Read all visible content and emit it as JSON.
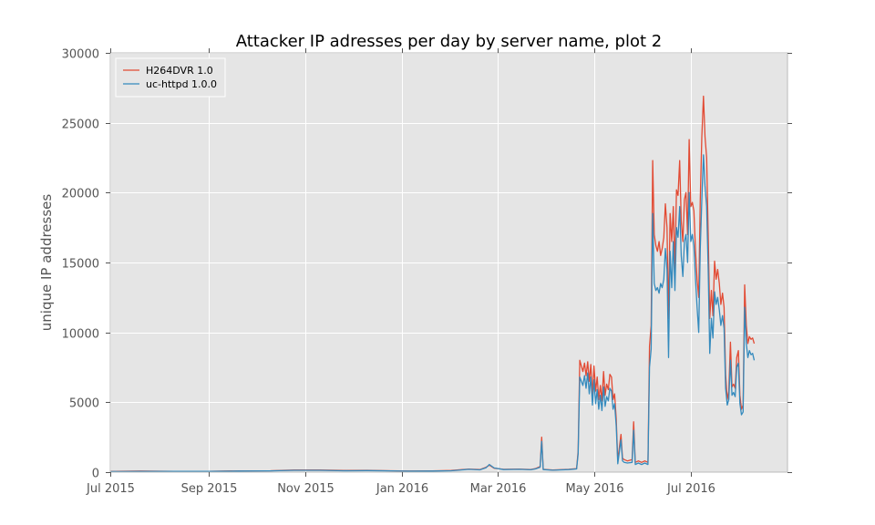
{
  "chart_data": {
    "type": "line",
    "title": "Attacker IP adresses per day by server name, plot 2",
    "xlabel": "",
    "ylabel": "unique IP addresses",
    "x_range": [
      "2015-07-01",
      "2016-08-31"
    ],
    "ylim": [
      0,
      30000
    ],
    "y_ticks": [
      0,
      5000,
      10000,
      15000,
      20000,
      25000,
      30000
    ],
    "x_ticks": [
      {
        "date": "2015-07-01",
        "label": "Jul 2015"
      },
      {
        "date": "2015-09-01",
        "label": "Sep 2015"
      },
      {
        "date": "2015-11-01",
        "label": "Nov 2015"
      },
      {
        "date": "2016-01-01",
        "label": "Jan 2016"
      },
      {
        "date": "2016-03-01",
        "label": "Mar 2016"
      },
      {
        "date": "2016-05-01",
        "label": "May 2016"
      },
      {
        "date": "2016-07-01",
        "label": "Jul 2016"
      }
    ],
    "grid": true,
    "legend_position": "top-left",
    "background_color": "#e5e5e5",
    "series": [
      {
        "name": "H264DVR 1.0",
        "color": "#e24a33",
        "points": [
          [
            "2015-07-01",
            50
          ],
          [
            "2015-07-20",
            80
          ],
          [
            "2015-08-10",
            60
          ],
          [
            "2015-09-01",
            60
          ],
          [
            "2015-09-20",
            90
          ],
          [
            "2015-10-10",
            100
          ],
          [
            "2015-10-25",
            150
          ],
          [
            "2015-11-10",
            150
          ],
          [
            "2015-11-25",
            120
          ],
          [
            "2015-12-10",
            130
          ],
          [
            "2015-12-25",
            100
          ],
          [
            "2016-01-05",
            80
          ],
          [
            "2016-01-20",
            90
          ],
          [
            "2016-02-01",
            120
          ],
          [
            "2016-02-12",
            220
          ],
          [
            "2016-02-19",
            180
          ],
          [
            "2016-02-23",
            350
          ],
          [
            "2016-02-25",
            500
          ],
          [
            "2016-02-28",
            280
          ],
          [
            "2016-03-05",
            200
          ],
          [
            "2016-03-15",
            220
          ],
          [
            "2016-03-22",
            180
          ],
          [
            "2016-03-25",
            250
          ],
          [
            "2016-03-28",
            400
          ],
          [
            "2016-03-29",
            2500
          ],
          [
            "2016-03-30",
            200
          ],
          [
            "2016-04-05",
            150
          ],
          [
            "2016-04-15",
            200
          ],
          [
            "2016-04-20",
            250
          ],
          [
            "2016-04-21",
            1500
          ],
          [
            "2016-04-22",
            8000
          ],
          [
            "2016-04-24",
            7200
          ],
          [
            "2016-04-25",
            7800
          ],
          [
            "2016-04-26",
            6900
          ],
          [
            "2016-04-27",
            7900
          ],
          [
            "2016-04-28",
            6500
          ],
          [
            "2016-04-29",
            7700
          ],
          [
            "2016-04-30",
            5500
          ],
          [
            "2016-05-01",
            7600
          ],
          [
            "2016-05-02",
            5800
          ],
          [
            "2016-05-03",
            6800
          ],
          [
            "2016-05-04",
            5200
          ],
          [
            "2016-05-05",
            6200
          ],
          [
            "2016-05-06",
            5100
          ],
          [
            "2016-05-07",
            7200
          ],
          [
            "2016-05-08",
            5500
          ],
          [
            "2016-05-09",
            6300
          ],
          [
            "2016-05-10",
            5900
          ],
          [
            "2016-05-11",
            7000
          ],
          [
            "2016-05-12",
            6800
          ],
          [
            "2016-05-13",
            5200
          ],
          [
            "2016-05-14",
            5600
          ],
          [
            "2016-05-15",
            3800
          ],
          [
            "2016-05-16",
            800
          ],
          [
            "2016-05-17",
            1800
          ],
          [
            "2016-05-18",
            2700
          ],
          [
            "2016-05-19",
            1000
          ],
          [
            "2016-05-20",
            900
          ],
          [
            "2016-05-22",
            800
          ],
          [
            "2016-05-25",
            900
          ],
          [
            "2016-05-26",
            3600
          ],
          [
            "2016-05-27",
            700
          ],
          [
            "2016-05-29",
            800
          ],
          [
            "2016-05-31",
            700
          ],
          [
            "2016-06-02",
            800
          ],
          [
            "2016-06-04",
            700
          ],
          [
            "2016-06-05",
            9000
          ],
          [
            "2016-06-06",
            10500
          ],
          [
            "2016-06-07",
            22300
          ],
          [
            "2016-06-08",
            17000
          ],
          [
            "2016-06-09",
            16200
          ],
          [
            "2016-06-10",
            15800
          ],
          [
            "2016-06-11",
            16500
          ],
          [
            "2016-06-12",
            15500
          ],
          [
            "2016-06-13",
            16000
          ],
          [
            "2016-06-14",
            16800
          ],
          [
            "2016-06-15",
            19200
          ],
          [
            "2016-06-16",
            17500
          ],
          [
            "2016-06-17",
            11000
          ],
          [
            "2016-06-18",
            18500
          ],
          [
            "2016-06-19",
            16500
          ],
          [
            "2016-06-20",
            19000
          ],
          [
            "2016-06-21",
            14500
          ],
          [
            "2016-06-22",
            20200
          ],
          [
            "2016-06-23",
            19800
          ],
          [
            "2016-06-24",
            22300
          ],
          [
            "2016-06-25",
            18000
          ],
          [
            "2016-06-26",
            16500
          ],
          [
            "2016-06-27",
            19500
          ],
          [
            "2016-06-28",
            20000
          ],
          [
            "2016-06-29",
            17000
          ],
          [
            "2016-06-30",
            23800
          ],
          [
            "2016-07-01",
            19000
          ],
          [
            "2016-07-02",
            19300
          ],
          [
            "2016-07-03",
            18700
          ],
          [
            "2016-07-04",
            15800
          ],
          [
            "2016-07-05",
            13800
          ],
          [
            "2016-07-06",
            12500
          ],
          [
            "2016-07-07",
            19500
          ],
          [
            "2016-07-08",
            24000
          ],
          [
            "2016-07-09",
            26900
          ],
          [
            "2016-07-10",
            24000
          ],
          [
            "2016-07-11",
            22500
          ],
          [
            "2016-07-12",
            17000
          ],
          [
            "2016-07-13",
            11000
          ],
          [
            "2016-07-14",
            13000
          ],
          [
            "2016-07-15",
            11200
          ],
          [
            "2016-07-16",
            15100
          ],
          [
            "2016-07-17",
            13800
          ],
          [
            "2016-07-18",
            14500
          ],
          [
            "2016-07-19",
            13500
          ],
          [
            "2016-07-20",
            12000
          ],
          [
            "2016-07-21",
            12800
          ],
          [
            "2016-07-22",
            11800
          ],
          [
            "2016-07-23",
            7000
          ],
          [
            "2016-07-24",
            5200
          ],
          [
            "2016-07-25",
            5800
          ],
          [
            "2016-07-26",
            9300
          ],
          [
            "2016-07-27",
            6100
          ],
          [
            "2016-07-28",
            6300
          ],
          [
            "2016-07-29",
            6000
          ],
          [
            "2016-07-30",
            8200
          ],
          [
            "2016-07-31",
            8700
          ],
          [
            "2016-08-01",
            5500
          ],
          [
            "2016-08-02",
            4500
          ],
          [
            "2016-08-03",
            4800
          ],
          [
            "2016-08-04",
            13400
          ],
          [
            "2016-08-05",
            10500
          ],
          [
            "2016-08-06",
            9200
          ],
          [
            "2016-08-07",
            9700
          ],
          [
            "2016-08-08",
            9500
          ],
          [
            "2016-08-09",
            9600
          ],
          [
            "2016-08-10",
            9200
          ]
        ]
      },
      {
        "name": "uc-httpd 1.0.0",
        "color": "#348abd",
        "points": [
          [
            "2015-07-01",
            40
          ],
          [
            "2015-07-20",
            60
          ],
          [
            "2015-08-10",
            50
          ],
          [
            "2015-09-01",
            50
          ],
          [
            "2015-09-20",
            80
          ],
          [
            "2015-10-10",
            90
          ],
          [
            "2015-10-25",
            130
          ],
          [
            "2015-11-10",
            130
          ],
          [
            "2015-11-25",
            100
          ],
          [
            "2015-12-10",
            110
          ],
          [
            "2015-12-25",
            90
          ],
          [
            "2016-01-05",
            70
          ],
          [
            "2016-01-20",
            80
          ],
          [
            "2016-02-01",
            100
          ],
          [
            "2016-02-12",
            200
          ],
          [
            "2016-02-19",
            160
          ],
          [
            "2016-02-23",
            320
          ],
          [
            "2016-02-25",
            550
          ],
          [
            "2016-02-28",
            300
          ],
          [
            "2016-03-05",
            180
          ],
          [
            "2016-03-15",
            200
          ],
          [
            "2016-03-22",
            170
          ],
          [
            "2016-03-25",
            230
          ],
          [
            "2016-03-28",
            350
          ],
          [
            "2016-03-29",
            2200
          ],
          [
            "2016-03-30",
            180
          ],
          [
            "2016-04-05",
            140
          ],
          [
            "2016-04-15",
            180
          ],
          [
            "2016-04-20",
            230
          ],
          [
            "2016-04-21",
            1300
          ],
          [
            "2016-04-22",
            6800
          ],
          [
            "2016-04-24",
            6200
          ],
          [
            "2016-04-25",
            6900
          ],
          [
            "2016-04-26",
            6000
          ],
          [
            "2016-04-27",
            7100
          ],
          [
            "2016-04-28",
            5600
          ],
          [
            "2016-04-29",
            6800
          ],
          [
            "2016-04-30",
            4800
          ],
          [
            "2016-05-01",
            6600
          ],
          [
            "2016-05-02",
            4900
          ],
          [
            "2016-05-03",
            5900
          ],
          [
            "2016-05-04",
            4500
          ],
          [
            "2016-05-05",
            5500
          ],
          [
            "2016-05-06",
            4400
          ],
          [
            "2016-05-07",
            6100
          ],
          [
            "2016-05-08",
            4700
          ],
          [
            "2016-05-09",
            5400
          ],
          [
            "2016-05-10",
            5100
          ],
          [
            "2016-05-11",
            6000
          ],
          [
            "2016-05-12",
            5800
          ],
          [
            "2016-05-13",
            4500
          ],
          [
            "2016-05-14",
            4900
          ],
          [
            "2016-05-15",
            3300
          ],
          [
            "2016-05-16",
            600
          ],
          [
            "2016-05-17",
            1500
          ],
          [
            "2016-05-18",
            2300
          ],
          [
            "2016-05-19",
            800
          ],
          [
            "2016-05-20",
            700
          ],
          [
            "2016-05-22",
            650
          ],
          [
            "2016-05-25",
            700
          ],
          [
            "2016-05-26",
            3000
          ],
          [
            "2016-05-27",
            550
          ],
          [
            "2016-05-29",
            650
          ],
          [
            "2016-05-31",
            550
          ],
          [
            "2016-06-02",
            650
          ],
          [
            "2016-06-04",
            550
          ],
          [
            "2016-06-05",
            7500
          ],
          [
            "2016-06-06",
            8800
          ],
          [
            "2016-06-07",
            18500
          ],
          [
            "2016-06-08",
            13500
          ],
          [
            "2016-06-09",
            13000
          ],
          [
            "2016-06-10",
            13200
          ],
          [
            "2016-06-11",
            12800
          ],
          [
            "2016-06-12",
            13500
          ],
          [
            "2016-06-13",
            13200
          ],
          [
            "2016-06-14",
            13800
          ],
          [
            "2016-06-15",
            16000
          ],
          [
            "2016-06-16",
            14500
          ],
          [
            "2016-06-17",
            8200
          ],
          [
            "2016-06-18",
            15800
          ],
          [
            "2016-06-19",
            13200
          ],
          [
            "2016-06-20",
            16500
          ],
          [
            "2016-06-21",
            13000
          ],
          [
            "2016-06-22",
            17500
          ],
          [
            "2016-06-23",
            16800
          ],
          [
            "2016-06-24",
            19000
          ],
          [
            "2016-06-25",
            15500
          ],
          [
            "2016-06-26",
            14000
          ],
          [
            "2016-06-27",
            16500
          ],
          [
            "2016-06-28",
            17000
          ],
          [
            "2016-06-29",
            15000
          ],
          [
            "2016-06-30",
            20000
          ],
          [
            "2016-07-01",
            16500
          ],
          [
            "2016-07-02",
            17000
          ],
          [
            "2016-07-03",
            16200
          ],
          [
            "2016-07-04",
            13800
          ],
          [
            "2016-07-05",
            11800
          ],
          [
            "2016-07-06",
            10000
          ],
          [
            "2016-07-07",
            16000
          ],
          [
            "2016-07-08",
            19500
          ],
          [
            "2016-07-09",
            22700
          ],
          [
            "2016-07-10",
            20500
          ],
          [
            "2016-07-11",
            19000
          ],
          [
            "2016-07-12",
            14500
          ],
          [
            "2016-07-13",
            8500
          ],
          [
            "2016-07-14",
            11000
          ],
          [
            "2016-07-15",
            9600
          ],
          [
            "2016-07-16",
            12900
          ],
          [
            "2016-07-17",
            12000
          ],
          [
            "2016-07-18",
            12500
          ],
          [
            "2016-07-19",
            11600
          ],
          [
            "2016-07-20",
            10500
          ],
          [
            "2016-07-21",
            11200
          ],
          [
            "2016-07-22",
            10300
          ],
          [
            "2016-07-23",
            6000
          ],
          [
            "2016-07-24",
            4800
          ],
          [
            "2016-07-25",
            5200
          ],
          [
            "2016-07-26",
            8000
          ],
          [
            "2016-07-27",
            5500
          ],
          [
            "2016-07-28",
            5700
          ],
          [
            "2016-07-29",
            5400
          ],
          [
            "2016-07-30",
            7500
          ],
          [
            "2016-07-31",
            7800
          ],
          [
            "2016-08-01",
            4900
          ],
          [
            "2016-08-02",
            4100
          ],
          [
            "2016-08-03",
            4300
          ],
          [
            "2016-08-04",
            11800
          ],
          [
            "2016-08-05",
            9200
          ],
          [
            "2016-08-06",
            8200
          ],
          [
            "2016-08-07",
            8700
          ],
          [
            "2016-08-08",
            8400
          ],
          [
            "2016-08-09",
            8500
          ],
          [
            "2016-08-10",
            8000
          ]
        ]
      }
    ]
  }
}
